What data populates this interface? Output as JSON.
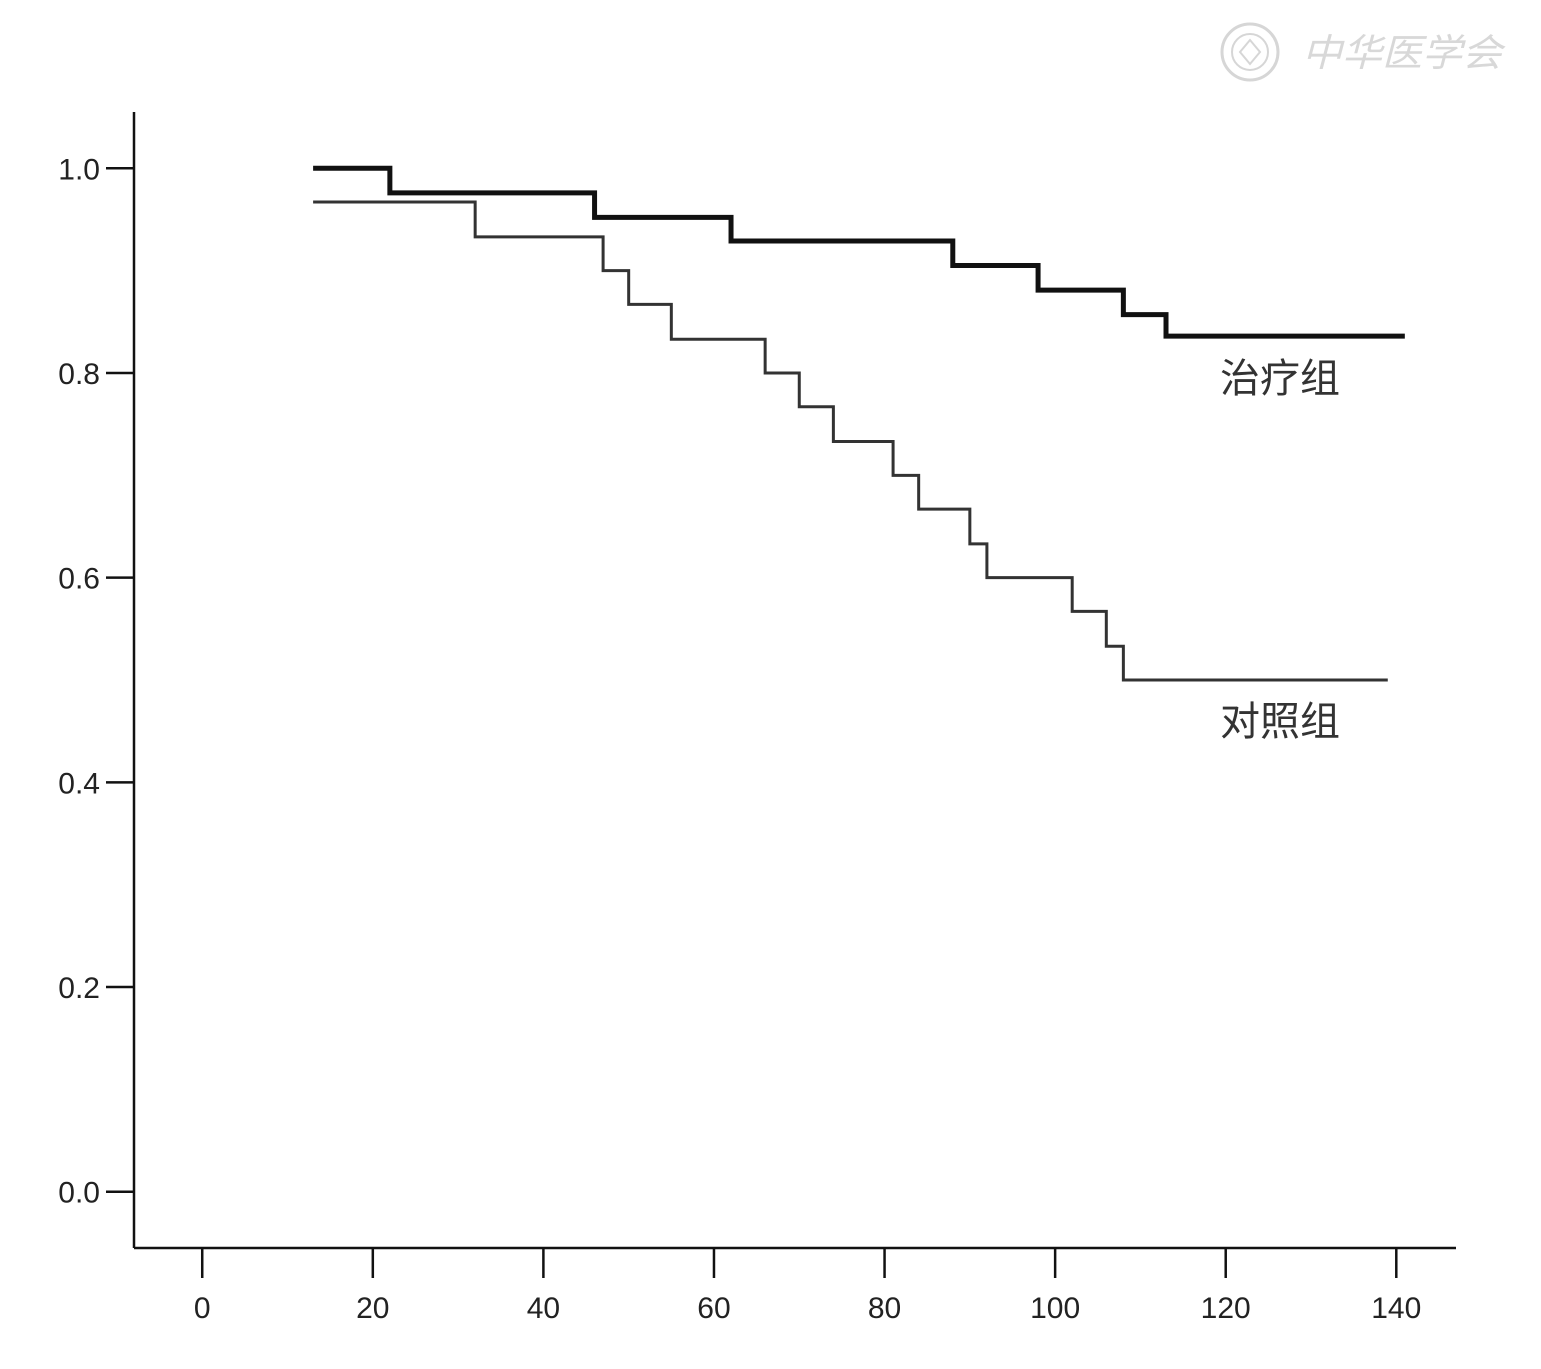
{
  "watermark": {
    "text": "中华医学会"
  },
  "chart_data": {
    "type": "line",
    "step": true,
    "xlim": [
      -8,
      147
    ],
    "ylim": [
      -0.055,
      1.055
    ],
    "xticks": [
      0,
      20,
      40,
      60,
      80,
      100,
      120,
      140
    ],
    "yticks": [
      0.0,
      0.2,
      0.4,
      0.6,
      0.8,
      1.0
    ],
    "xtick_labels": [
      "0",
      "20",
      "40",
      "60",
      "80",
      "100",
      "120",
      "140"
    ],
    "ytick_labels": [
      "0.0",
      "0.2",
      "0.4",
      "0.6",
      "0.8",
      "1.0"
    ],
    "series": [
      {
        "name": "治疗组",
        "color": "#111111",
        "x": [
          13,
          22,
          46,
          62,
          88,
          98,
          108,
          113,
          141
        ],
        "y": [
          1.0,
          0.976,
          0.952,
          0.929,
          0.905,
          0.881,
          0.857,
          0.836,
          0.836
        ]
      },
      {
        "name": "对照组",
        "color": "#333333",
        "x": [
          13,
          32,
          47,
          50,
          55,
          66,
          70,
          74,
          81,
          84,
          90,
          92,
          102,
          106,
          108,
          139
        ],
        "y": [
          0.967,
          0.933,
          0.9,
          0.867,
          0.833,
          0.8,
          0.767,
          0.733,
          0.7,
          0.667,
          0.633,
          0.6,
          0.567,
          0.533,
          0.5,
          0.5
        ]
      }
    ]
  }
}
